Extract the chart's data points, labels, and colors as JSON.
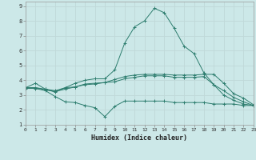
{
  "xlabel": "Humidex (Indice chaleur)",
  "x_values": [
    0,
    1,
    2,
    3,
    4,
    5,
    6,
    7,
    8,
    9,
    10,
    11,
    12,
    13,
    14,
    15,
    16,
    17,
    18,
    19,
    20,
    21,
    22,
    23
  ],
  "line_max": [
    3.5,
    3.8,
    3.4,
    3.2,
    3.5,
    3.8,
    4.0,
    4.1,
    4.1,
    4.7,
    6.5,
    7.6,
    8.0,
    8.85,
    8.55,
    7.5,
    6.3,
    5.8,
    4.5,
    3.7,
    3.0,
    2.65,
    2.4,
    2.3
  ],
  "line_mean": [
    3.5,
    3.5,
    3.4,
    3.3,
    3.5,
    3.55,
    3.7,
    3.75,
    3.85,
    4.05,
    4.25,
    4.35,
    4.4,
    4.4,
    4.4,
    4.35,
    4.35,
    4.35,
    4.4,
    4.4,
    3.8,
    3.1,
    2.8,
    2.35
  ],
  "line_q75": [
    3.5,
    3.5,
    3.35,
    3.25,
    3.4,
    3.55,
    3.75,
    3.8,
    3.85,
    3.9,
    4.1,
    4.2,
    4.3,
    4.3,
    4.3,
    4.2,
    4.2,
    4.2,
    4.25,
    3.7,
    3.3,
    2.85,
    2.55,
    2.3
  ],
  "line_min": [
    3.45,
    3.45,
    3.3,
    2.9,
    2.55,
    2.5,
    2.3,
    2.15,
    1.55,
    2.25,
    2.6,
    2.6,
    2.6,
    2.6,
    2.6,
    2.5,
    2.5,
    2.5,
    2.5,
    2.4,
    2.4,
    2.4,
    2.3,
    2.3
  ],
  "line_color": "#2d7d6e",
  "bg_color": "#cce8e8",
  "grid_color_minor": "#c0d8d8",
  "grid_color_major": "#b8c8c8",
  "xlim": [
    0,
    23
  ],
  "ylim": [
    1,
    9.3
  ],
  "yticks": [
    1,
    2,
    3,
    4,
    5,
    6,
    7,
    8,
    9
  ],
  "xticks": [
    0,
    1,
    2,
    3,
    4,
    5,
    6,
    7,
    8,
    9,
    10,
    11,
    12,
    13,
    14,
    15,
    16,
    17,
    18,
    19,
    20,
    21,
    22,
    23
  ]
}
